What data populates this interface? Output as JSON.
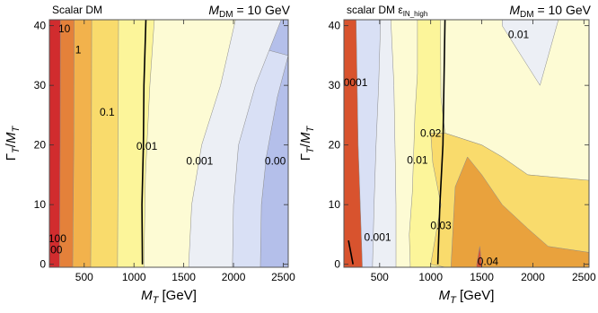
{
  "chart_data": [
    {
      "type": "contour",
      "title": "Scalar DM",
      "header_right": {
        "symbol": "M",
        "sub": "DM",
        "rest": " = 10 GeV"
      },
      "xlabel": {
        "symbol": "M",
        "sub": "T",
        "rest": " [GeV]"
      },
      "ylabel": {
        "top": "Γ",
        "top_sub": "T",
        "bottom": "M",
        "bottom_sub": "T"
      },
      "xlim": [
        150,
        2550
      ],
      "ylim": [
        -0.5,
        41
      ],
      "x_ticks": [
        {
          "v": 500,
          "label": "500"
        },
        {
          "v": 1000,
          "label": "1000"
        },
        {
          "v": 1500,
          "label": "1500"
        },
        {
          "v": 2000,
          "label": "2000"
        },
        {
          "v": 2500,
          "label": "2500"
        }
      ],
      "y_ticks": [
        {
          "v": 0,
          "label": "0"
        },
        {
          "v": 10,
          "label": "10"
        },
        {
          "v": 20,
          "label": "20"
        },
        {
          "v": 30,
          "label": "30"
        },
        {
          "v": 40,
          "label": "40"
        }
      ],
      "region_colors": [
        "#d12c2e",
        "#e4813a",
        "#f2b24c",
        "#f9db6c",
        "#fcf59a",
        "#fdfbd4",
        "#eceff5",
        "#d9e0f5",
        "#b4bfea"
      ],
      "boundaries": [
        [
          [
            260,
            41
          ],
          [
            258,
            20
          ],
          [
            252,
            0
          ]
        ],
        [
          [
            400,
            41
          ],
          [
            395,
            20
          ],
          [
            385,
            0
          ]
        ],
        [
          [
            575,
            41
          ],
          [
            572,
            20
          ],
          [
            565,
            0
          ]
        ],
        [
          [
            845,
            41
          ],
          [
            840,
            20
          ],
          [
            835,
            0
          ]
        ],
        [
          [
            1205,
            41
          ],
          [
            1160,
            30
          ],
          [
            1115,
            15
          ],
          [
            1100,
            0
          ]
        ],
        [
          [
            2020,
            41
          ],
          [
            1870,
            30
          ],
          [
            1680,
            20
          ],
          [
            1580,
            10
          ],
          [
            1550,
            0
          ]
        ],
        [
          [
            2480,
            41
          ],
          [
            2220,
            30
          ],
          [
            2050,
            20
          ],
          [
            2000,
            10
          ],
          [
            1990,
            0
          ]
        ],
        [
          [
            2550,
            35
          ],
          [
            2440,
            28
          ],
          [
            2330,
            18
          ],
          [
            2280,
            10
          ],
          [
            2270,
            0
          ]
        ]
      ],
      "black_curve": [
        [
          1120,
          41
        ],
        [
          1100,
          30
        ],
        [
          1095,
          20
        ],
        [
          1080,
          10
        ],
        [
          1085,
          0
        ]
      ],
      "contour_labels": [
        {
          "text": "10",
          "x": 300,
          "y": 39.5
        },
        {
          "text": "1",
          "x": 440,
          "y": 36
        },
        {
          "text": "0.1",
          "x": 730,
          "y": 25.5
        },
        {
          "text": "0.01",
          "x": 1130,
          "y": 19.8
        },
        {
          "text": "0.001",
          "x": 1660,
          "y": 17.3
        },
        {
          "text": "0.00",
          "x": 2420,
          "y": 17.3
        },
        {
          "text": "100",
          "x": 230,
          "y": 4.3
        },
        {
          "text": "000",
          "x": 190,
          "y": 2.4
        }
      ]
    },
    {
      "type": "contour",
      "title": "scalar DM ε",
      "title_sub": "IN_high",
      "header_right": {
        "symbol": "M",
        "sub": "DM",
        "rest": " = 10 GeV"
      },
      "xlabel": {
        "symbol": "M",
        "sub": "T",
        "rest": " [GeV]"
      },
      "ylabel": {
        "top": "Γ",
        "top_sub": "T",
        "bottom": "M",
        "bottom_sub": "T"
      },
      "xlim": [
        150,
        2550
      ],
      "ylim": [
        -0.5,
        41
      ],
      "x_ticks": [
        {
          "v": 500,
          "label": "500"
        },
        {
          "v": 1000,
          "label": "1000"
        },
        {
          "v": 1500,
          "label": "1500"
        },
        {
          "v": 2000,
          "label": "2000"
        },
        {
          "v": 2500,
          "label": "2500"
        }
      ],
      "y_ticks": [
        {
          "v": 0,
          "label": "0"
        },
        {
          "v": 10,
          "label": "10"
        },
        {
          "v": 20,
          "label": "20"
        },
        {
          "v": 30,
          "label": "30"
        },
        {
          "v": 40,
          "label": "40"
        }
      ],
      "region_colors": [
        "#b4bfea",
        "#d9e0f5",
        "#eceff5",
        "#fdfbd4",
        "#fcf59a",
        "#f9db6c",
        "#e9a23d",
        "#d8532e"
      ],
      "boundaries": [
        [
          [
            270,
            41
          ],
          [
            280,
            30
          ],
          [
            290,
            20
          ],
          [
            310,
            10
          ],
          [
            330,
            0
          ]
        ],
        [
          [
            510,
            41
          ],
          [
            490,
            30
          ],
          [
            465,
            20
          ],
          [
            445,
            10
          ],
          [
            430,
            0
          ]
        ],
        [
          [
            610,
            41
          ],
          [
            640,
            30
          ],
          [
            650,
            20
          ],
          [
            660,
            10
          ],
          [
            660,
            0
          ]
        ],
        [
          [
            870,
            41
          ],
          [
            870,
            32
          ],
          [
            845,
            25
          ],
          [
            820,
            12
          ],
          [
            790,
            5
          ],
          [
            800,
            0
          ]
        ],
        [
          [
            1095,
            41
          ],
          [
            1100,
            28
          ],
          [
            1140,
            22
          ],
          [
            1500,
            20
          ],
          [
            1700,
            18
          ],
          [
            1950,
            15
          ],
          [
            2550,
            14
          ]
        ],
        [
          [
            1000,
            22
          ],
          [
            1020,
            17
          ],
          [
            1100,
            10
          ],
          [
            1050,
            5
          ],
          [
            1000,
            0
          ]
        ],
        [
          [
            1200,
            0
          ],
          [
            1240,
            13
          ],
          [
            1360,
            18
          ],
          [
            1500,
            15
          ],
          [
            1700,
            10
          ],
          [
            1950,
            6
          ],
          [
            2150,
            3
          ],
          [
            2550,
            2
          ]
        ],
        [
          [
            1450,
            0
          ],
          [
            1480,
            3
          ],
          [
            1500,
            0
          ]
        ]
      ],
      "top_notch": [
        [
          1700,
          40
        ],
        [
          2070,
          30
        ],
        [
          2250,
          41
        ]
      ],
      "black_curve": [
        [
          1140,
          41
        ],
        [
          1120,
          20
        ],
        [
          1090,
          10
        ],
        [
          1070,
          0
        ]
      ],
      "black_curve_2": [
        [
          195,
          4
        ],
        [
          240,
          0
        ]
      ],
      "contour_labels": [
        {
          "text": "0.01",
          "x": 1860,
          "y": 38.5
        },
        {
          "text": ".0001",
          "x": 250,
          "y": 30.5
        },
        {
          "text": "0.02",
          "x": 1000,
          "y": 22
        },
        {
          "text": "0.01",
          "x": 870,
          "y": 17.5
        },
        {
          "text": "0.03",
          "x": 1100,
          "y": 6.5
        },
        {
          "text": "0.001",
          "x": 480,
          "y": 4.5
        },
        {
          "text": "0.04",
          "x": 1560,
          "y": 0.5
        }
      ]
    }
  ]
}
